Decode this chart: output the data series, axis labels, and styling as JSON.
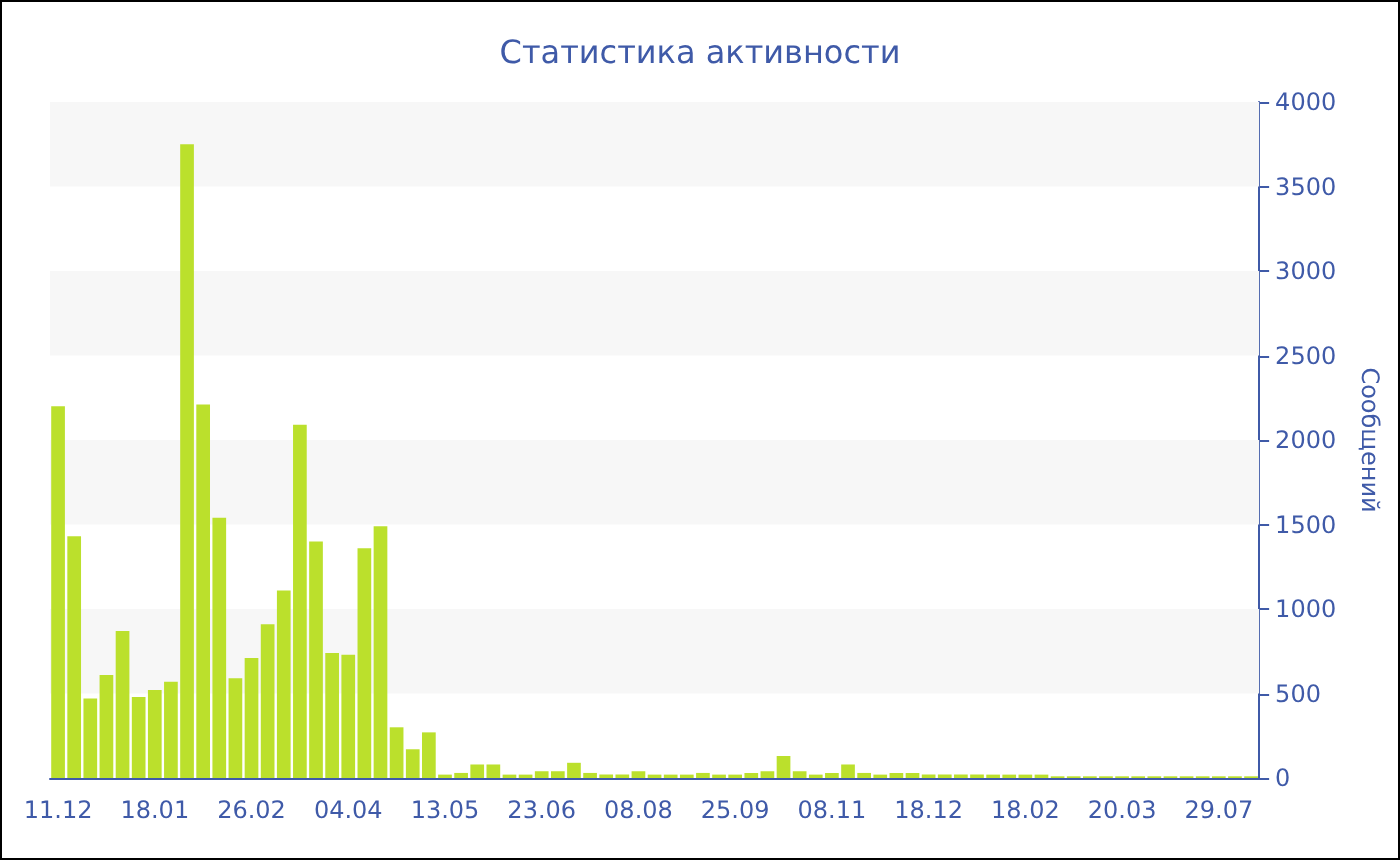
{
  "chart_data": {
    "type": "bar",
    "title": "Статистика активности",
    "ylabel": "Сообщений",
    "categories": [
      "11.12",
      null,
      null,
      null,
      null,
      null,
      "18.01",
      null,
      null,
      null,
      null,
      null,
      "26.02",
      null,
      null,
      null,
      null,
      null,
      "04.04",
      null,
      null,
      null,
      null,
      null,
      "13.05",
      null,
      null,
      null,
      null,
      null,
      "23.06",
      null,
      null,
      null,
      null,
      null,
      "08.08",
      null,
      null,
      null,
      null,
      null,
      "25.09",
      null,
      null,
      null,
      null,
      null,
      "08.11",
      null,
      null,
      null,
      null,
      null,
      "18.12",
      null,
      null,
      null,
      null,
      null,
      "18.02",
      null,
      null,
      null,
      null,
      null,
      "20.03",
      null,
      null,
      null,
      null,
      null,
      "29.07",
      null,
      null
    ],
    "values": [
      2200,
      1430,
      470,
      610,
      870,
      480,
      520,
      570,
      3750,
      2210,
      1540,
      590,
      710,
      910,
      1110,
      2090,
      1400,
      740,
      730,
      1360,
      1490,
      300,
      170,
      270,
      20,
      30,
      80,
      80,
      20,
      20,
      40,
      40,
      90,
      30,
      20,
      20,
      40,
      20,
      20,
      20,
      30,
      20,
      20,
      30,
      40,
      130,
      40,
      20,
      30,
      80,
      30,
      20,
      30,
      30,
      20,
      20,
      20,
      20,
      20,
      20,
      20,
      20,
      10,
      10,
      10,
      10,
      10,
      10,
      10,
      10,
      10,
      10,
      10,
      10,
      10
    ],
    "color": "#bbe02c",
    "ylim": [
      0,
      4000
    ],
    "yticks": [
      0,
      500,
      1000,
      1500,
      2000,
      2500,
      3000,
      3500,
      4000
    ],
    "bands": [
      {
        "axis": "y",
        "from": 500,
        "to": 1000,
        "color": "#f7f7f7"
      },
      {
        "axis": "y",
        "from": 1500,
        "to": 2000,
        "color": "#f7f7f7"
      },
      {
        "axis": "y",
        "from": 2500,
        "to": 3000,
        "color": "#f7f7f7"
      },
      {
        "axis": "y",
        "from": 3500,
        "to": 4000,
        "color": "#f7f7f7"
      }
    ]
  }
}
